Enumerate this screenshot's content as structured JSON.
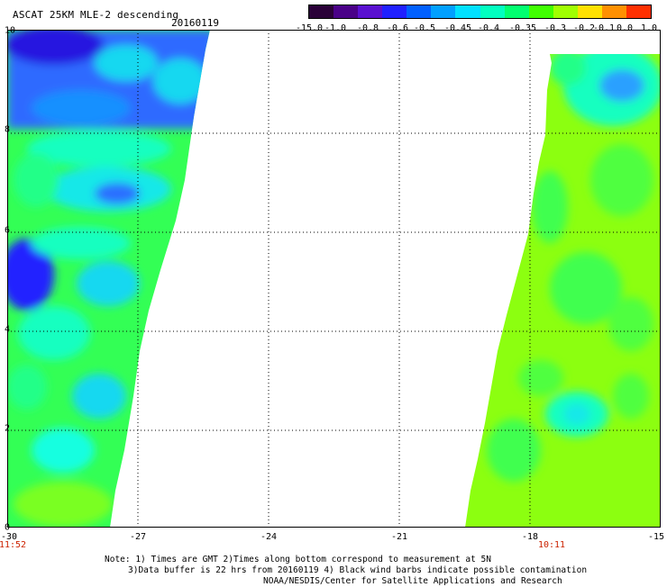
{
  "header": {
    "title": "ASCAT 25KM MLE-2 descending",
    "date": "20160119"
  },
  "colorbar": {
    "labels": [
      "-15.0",
      "-1.0",
      "-0.8",
      "-0.6",
      "-0.5",
      "-0.45",
      "-0.4",
      "-0.35",
      "-0.3",
      "-0.2",
      "-0.1",
      "0.0",
      "1.0"
    ],
    "colors": [
      "#2a0038",
      "#4a0088",
      "#5a10d0",
      "#2020ff",
      "#0060ff",
      "#00a0ff",
      "#00e0ff",
      "#00ffc0",
      "#00ff70",
      "#40ff00",
      "#a0ff00",
      "#ffe000",
      "#ff9000",
      "#ff3000"
    ]
  },
  "map": {
    "lon_ticks": [
      "-30",
      "-27",
      "-24",
      "-21",
      "-18",
      "-15"
    ],
    "lat_ticks": [
      "0",
      "2",
      "4",
      "6",
      "8",
      "10"
    ],
    "time_labels": {
      "left": "11:52",
      "right": "10:11"
    }
  },
  "notes": {
    "line1": "Note: 1) Times are GMT 2)Times along bottom correspond to measurement at 5N",
    "line2": "3)Data buffer is 22 hrs from 20160119 4) Black wind barbs indicate possible contamination",
    "line3": "NOAA/NESDIS/Center for Satellite Applications and Research"
  }
}
